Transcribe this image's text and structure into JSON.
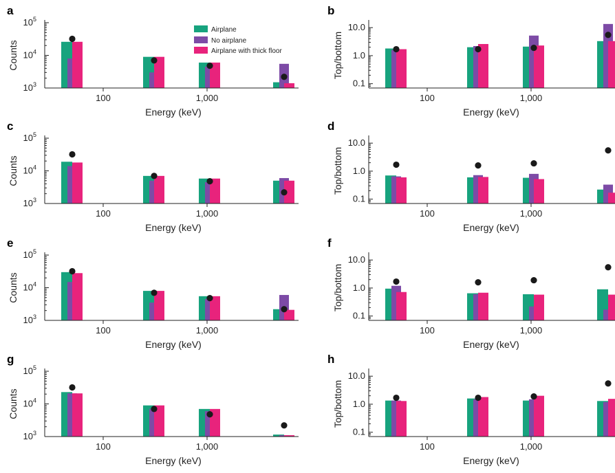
{
  "figure": {
    "legend": [
      {
        "label": "Airplane",
        "color": "#17a37e"
      },
      {
        "label": "No airplane",
        "color": "#7d4ba6"
      },
      {
        "label": "Airplane with thick floor",
        "color": "#e8237c"
      }
    ],
    "marker_color": "#1a1a1a"
  },
  "chart_data": [
    {
      "panel": "a",
      "type": "bar",
      "scale": "log",
      "xlabel": "Energy (keV)",
      "ylabel": "Counts",
      "xticks": [
        "100",
        "1,000"
      ],
      "yticks": [
        "10^3",
        "10^4",
        "10^5"
      ],
      "ylim": [
        1000,
        100000
      ],
      "series": [
        {
          "name": "Airplane",
          "values": [
            26000,
            9000,
            6000,
            1500
          ]
        },
        {
          "name": "No airplane",
          "values": [
            8000,
            3000,
            4500,
            5500
          ]
        },
        {
          "name": "Airplane with thick floor",
          "values": [
            26000,
            9000,
            6000,
            1400
          ]
        }
      ],
      "markers": [
        32000,
        7000,
        4800,
        2200
      ]
    },
    {
      "panel": "b",
      "type": "bar",
      "scale": "log",
      "xlabel": "Energy (keV)",
      "ylabel": "Top/bottom",
      "xticks": [
        "100",
        "1,000"
      ],
      "yticks": [
        "0.1",
        "1.0",
        "10.0"
      ],
      "ylim": [
        0.07,
        15
      ],
      "series": [
        {
          "name": "Airplane",
          "values": [
            1.8,
            2.0,
            2.1,
            3.3
          ]
        },
        {
          "name": "No airplane",
          "values": [
            1.6,
            2.2,
            5.2,
            13.5
          ]
        },
        {
          "name": "Airplane with thick floor",
          "values": [
            1.7,
            2.6,
            2.3,
            3.3
          ]
        }
      ],
      "markers": [
        1.7,
        1.7,
        1.9,
        5.5
      ]
    },
    {
      "panel": "c",
      "type": "bar",
      "scale": "log",
      "xlabel": "Energy (keV)",
      "ylabel": "Counts",
      "xticks": [
        "100",
        "1,000"
      ],
      "yticks": [
        "10^3",
        "10^4",
        "10^5"
      ],
      "ylim": [
        1000,
        100000
      ],
      "series": [
        {
          "name": "Airplane",
          "values": [
            19000,
            7000,
            5800,
            5000
          ]
        },
        {
          "name": "No airplane",
          "values": [
            14000,
            5000,
            4500,
            6000
          ]
        },
        {
          "name": "Airplane with thick floor",
          "values": [
            18000,
            7000,
            5800,
            5000
          ]
        }
      ],
      "markers": [
        32000,
        7000,
        4800,
        2200
      ]
    },
    {
      "panel": "d",
      "type": "bar",
      "scale": "log",
      "xlabel": "Energy (keV)",
      "ylabel": "Top/bottom",
      "xticks": [
        "100",
        "1,000"
      ],
      "yticks": [
        "0.1",
        "1.0",
        "10.0"
      ],
      "ylim": [
        0.07,
        15
      ],
      "series": [
        {
          "name": "Airplane",
          "values": [
            0.7,
            0.6,
            0.58,
            0.22
          ]
        },
        {
          "name": "No airplane",
          "values": [
            0.65,
            0.72,
            0.8,
            0.33
          ]
        },
        {
          "name": "Airplane with thick floor",
          "values": [
            0.6,
            0.62,
            0.52,
            0.17
          ]
        }
      ],
      "markers": [
        1.7,
        1.6,
        1.9,
        5.5
      ]
    },
    {
      "panel": "e",
      "type": "bar",
      "scale": "log",
      "xlabel": "Energy (keV)",
      "ylabel": "Counts",
      "xticks": [
        "100",
        "1,000"
      ],
      "yticks": [
        "10^3",
        "10^4",
        "10^5"
      ],
      "ylim": [
        1000,
        100000
      ],
      "series": [
        {
          "name": "Airplane",
          "values": [
            30000,
            8000,
            5500,
            2200
          ]
        },
        {
          "name": "No airplane",
          "values": [
            15000,
            3500,
            4500,
            6000
          ]
        },
        {
          "name": "Airplane with thick floor",
          "values": [
            28000,
            8000,
            5500,
            2100
          ]
        }
      ],
      "markers": [
        32000,
        7000,
        4800,
        2200
      ]
    },
    {
      "panel": "f",
      "type": "bar",
      "scale": "log",
      "xlabel": "Energy (keV)",
      "ylabel": "Top/bottom",
      "xticks": [
        "100",
        "1,000"
      ],
      "yticks": [
        "0.1",
        "1.0",
        "10.0"
      ],
      "ylim": [
        0.07,
        15
      ],
      "series": [
        {
          "name": "Airplane",
          "values": [
            0.95,
            0.65,
            0.6,
            0.9
          ]
        },
        {
          "name": "No airplane",
          "values": [
            1.2,
            0.6,
            0.22,
            0.17
          ]
        },
        {
          "name": "Airplane with thick floor",
          "values": [
            0.72,
            0.68,
            0.58,
            0.58
          ]
        }
      ],
      "markers": [
        1.7,
        1.6,
        1.9,
        5.5
      ]
    },
    {
      "panel": "g",
      "type": "bar",
      "scale": "log",
      "xlabel": "Energy (keV)",
      "ylabel": "Counts",
      "xticks": [
        "100",
        "1,000"
      ],
      "yticks": [
        "10^3",
        "10^4",
        "10^5"
      ],
      "ylim": [
        1000,
        100000
      ],
      "series": [
        {
          "name": "Airplane",
          "values": [
            23000,
            9000,
            7000,
            1150
          ]
        },
        {
          "name": "No airplane",
          "values": [
            21000,
            7000,
            6000,
            1100
          ]
        },
        {
          "name": "Airplane with thick floor",
          "values": [
            21000,
            9000,
            7000,
            1100
          ]
        }
      ],
      "markers": [
        32000,
        7000,
        4800,
        2200
      ]
    },
    {
      "panel": "h",
      "type": "bar",
      "scale": "log",
      "xlabel": "Energy (keV)",
      "ylabel": "Top/bottom",
      "xticks": [
        "100",
        "1,000"
      ],
      "yticks": [
        "0.1",
        "1.0",
        "10.0"
      ],
      "ylim": [
        0.07,
        15
      ],
      "series": [
        {
          "name": "Airplane",
          "values": [
            1.35,
            1.6,
            1.35,
            1.3
          ]
        },
        {
          "name": "No airplane",
          "values": [
            1.35,
            1.5,
            1.5,
            1.2
          ]
        },
        {
          "name": "Airplane with thick floor",
          "values": [
            1.3,
            1.8,
            2.0,
            1.55
          ]
        }
      ],
      "markers": [
        1.7,
        1.7,
        1.9,
        5.5
      ]
    }
  ]
}
